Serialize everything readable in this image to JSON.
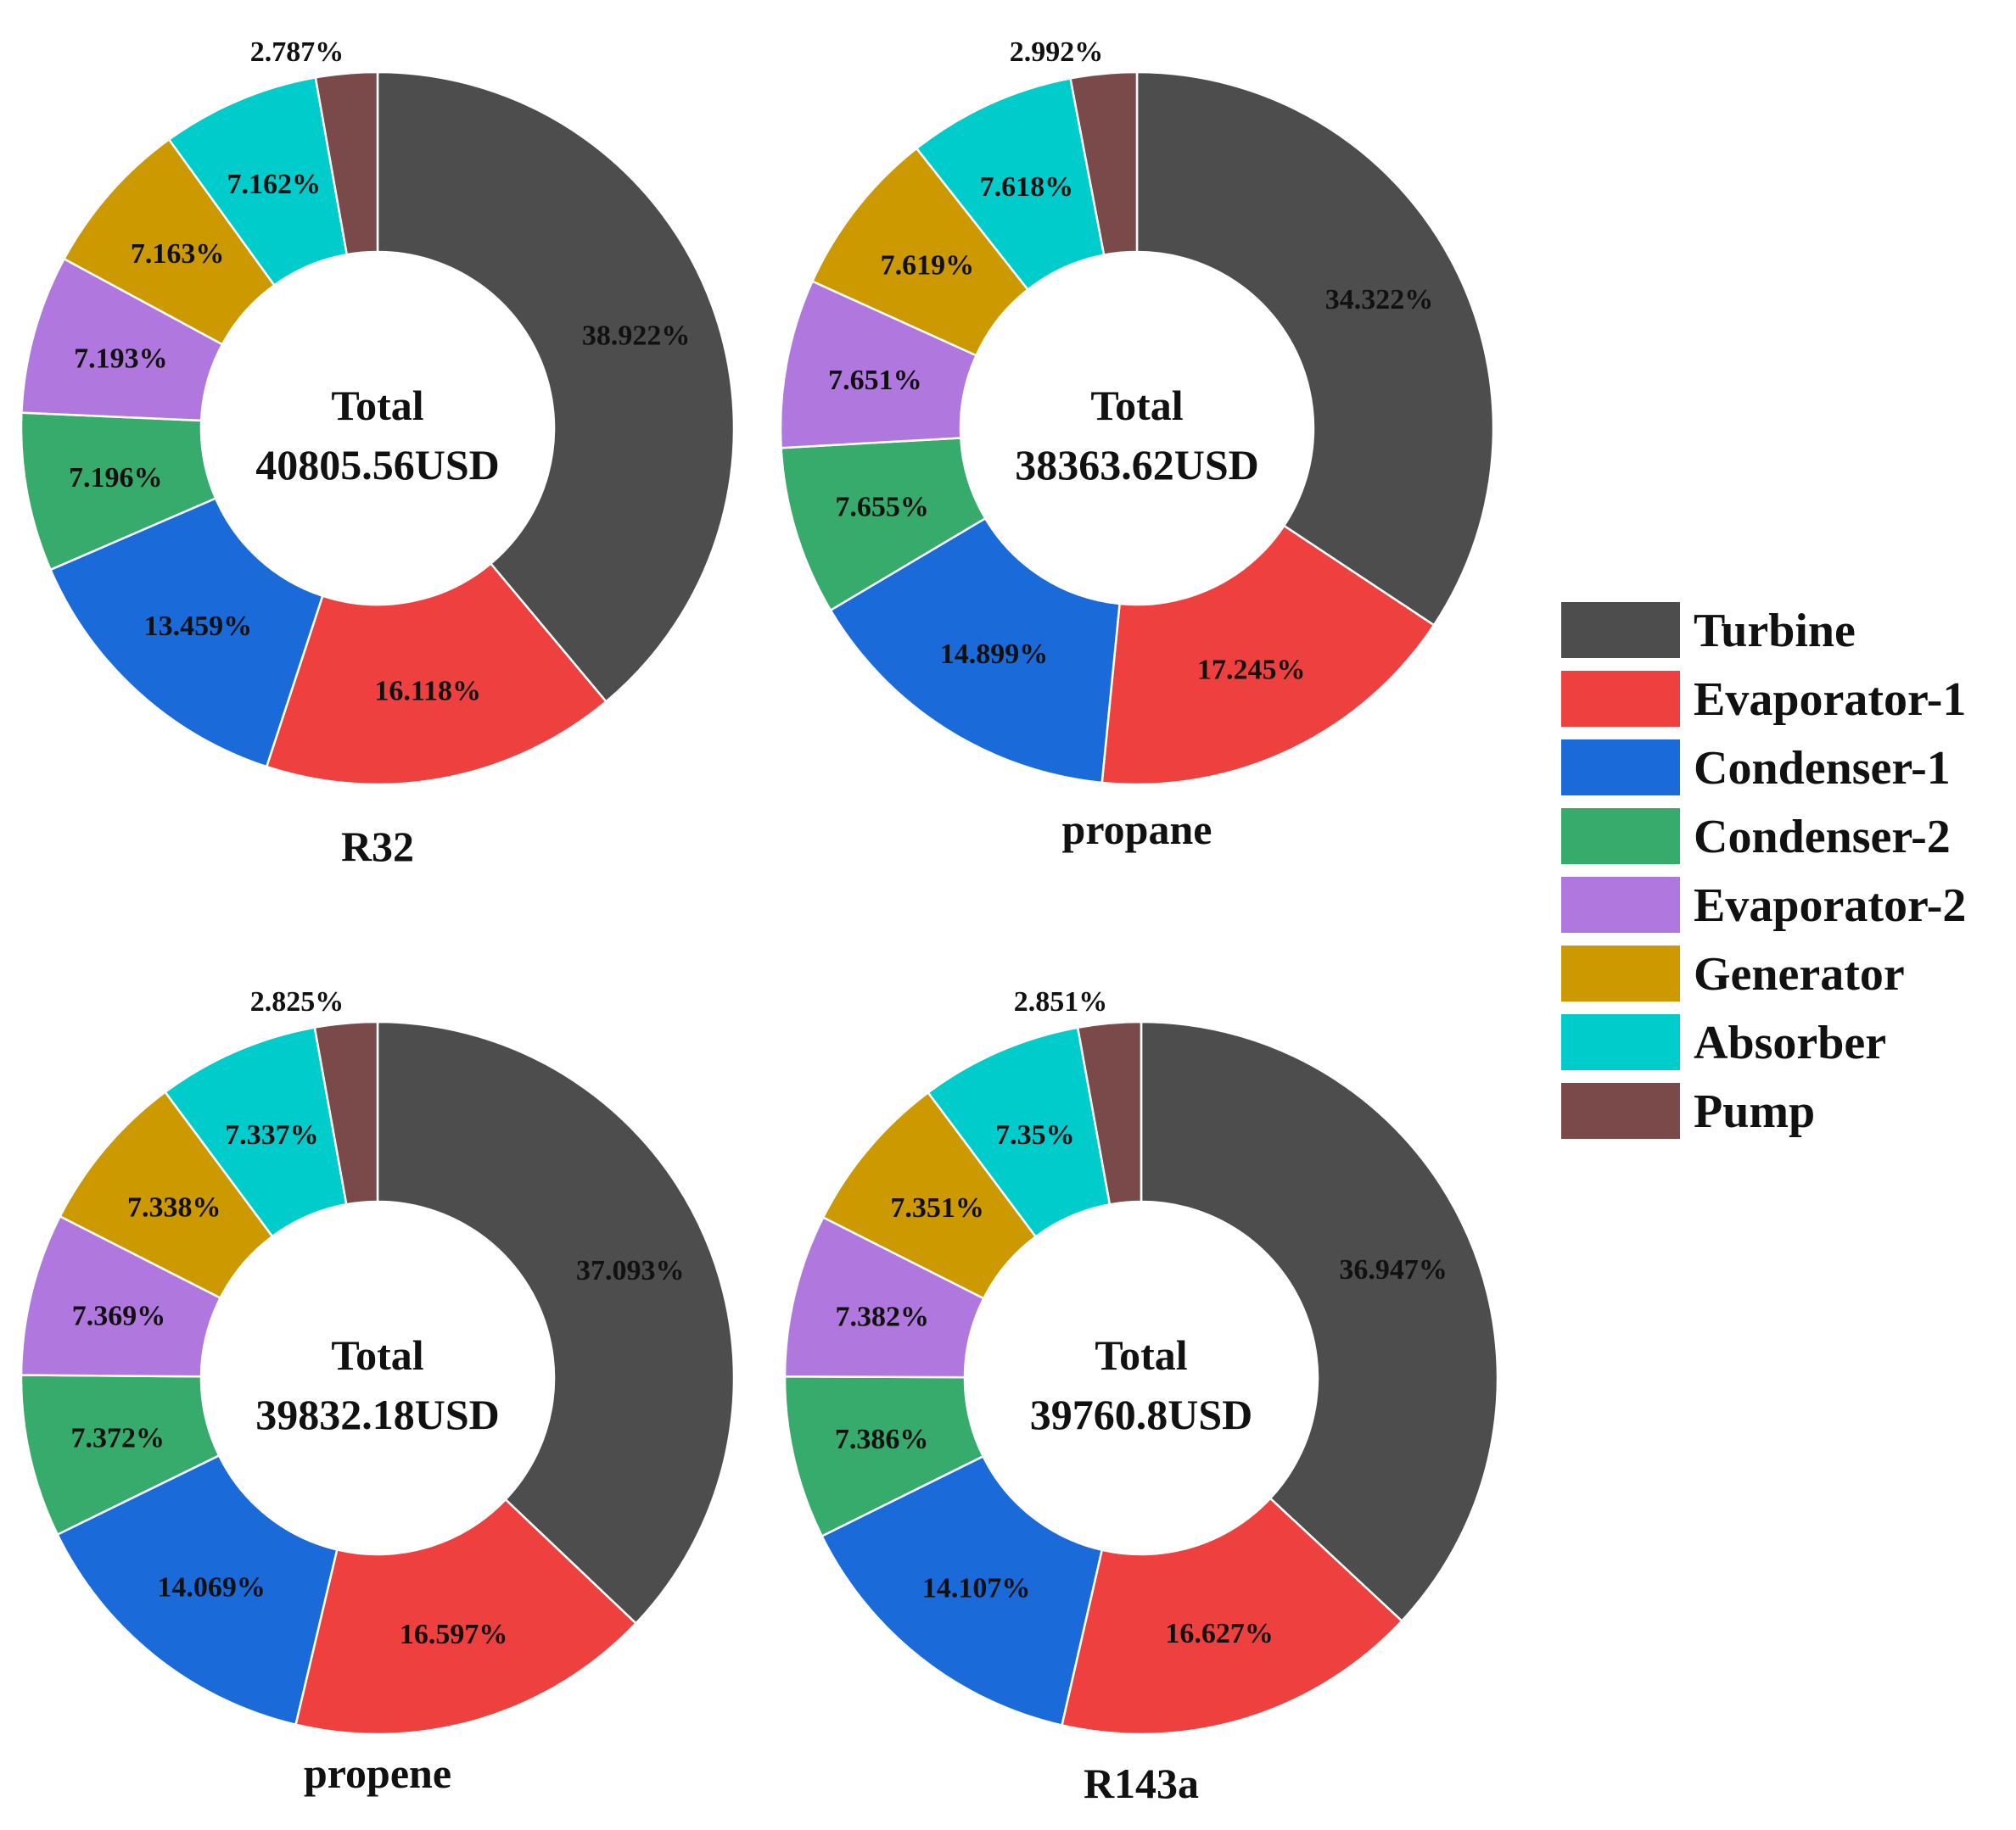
{
  "legend": {
    "items": [
      {
        "label": "Turbine",
        "color": "#4d4d4d"
      },
      {
        "label": "Evaporator-1",
        "color": "#ef4040"
      },
      {
        "label": "Condenser-1",
        "color": "#1a6ad9"
      },
      {
        "label": "Condenser-2",
        "color": "#36ab6b"
      },
      {
        "label": "Evaporator-2",
        "color": "#b078df"
      },
      {
        "label": "Generator",
        "color": "#cc9900"
      },
      {
        "label": "Absorber",
        "color": "#00cccc"
      },
      {
        "label": "Pump",
        "color": "#7a4a4a"
      }
    ]
  },
  "chart_data": [
    {
      "type": "pie",
      "name": "R32",
      "center_line1": "Total",
      "center_line2": "40805.56USD",
      "categories": [
        "Turbine",
        "Evaporator-1",
        "Condenser-1",
        "Condenser-2",
        "Evaporator-2",
        "Generator",
        "Absorber",
        "Pump"
      ],
      "values": [
        38.922,
        16.118,
        13.459,
        7.196,
        7.193,
        7.163,
        7.162,
        2.787
      ],
      "labels": [
        "38.922%",
        "16.118%",
        "13.459%",
        "7.196%",
        "7.193%",
        "7.163%",
        "7.162%",
        "2.787%"
      ]
    },
    {
      "type": "pie",
      "name": "propane",
      "center_line1": "Total",
      "center_line2": "38363.62USD",
      "categories": [
        "Turbine",
        "Evaporator-1",
        "Condenser-1",
        "Condenser-2",
        "Evaporator-2",
        "Generator",
        "Absorber",
        "Pump"
      ],
      "values": [
        34.322,
        17.245,
        14.899,
        7.655,
        7.651,
        7.619,
        7.618,
        2.992
      ],
      "labels": [
        "34.322%",
        "17.245%",
        "14.899%",
        "7.655%",
        "7.651%",
        "7.619%",
        "7.618%",
        "2.992%"
      ]
    },
    {
      "type": "pie",
      "name": "propene",
      "center_line1": "Total",
      "center_line2": "39832.18USD",
      "categories": [
        "Turbine",
        "Evaporator-1",
        "Condenser-1",
        "Condenser-2",
        "Evaporator-2",
        "Generator",
        "Absorber",
        "Pump"
      ],
      "values": [
        37.093,
        16.597,
        14.069,
        7.372,
        7.369,
        7.338,
        7.337,
        2.825
      ],
      "labels": [
        "37.093%",
        "16.597%",
        "14.069%",
        "7.372%",
        "7.369%",
        "7.338%",
        "7.337%",
        "2.825%"
      ]
    },
    {
      "type": "pie",
      "name": "R143a",
      "center_line1": "Total",
      "center_line2": "39760.8USD",
      "categories": [
        "Turbine",
        "Evaporator-1",
        "Condenser-1",
        "Condenser-2",
        "Evaporator-2",
        "Generator",
        "Absorber",
        "Pump"
      ],
      "values": [
        36.947,
        16.627,
        14.107,
        7.386,
        7.382,
        7.351,
        7.35,
        2.851
      ],
      "labels": [
        "36.947%",
        "16.627%",
        "14.107%",
        "7.386%",
        "7.382%",
        "7.351%",
        "7.35%",
        "2.851%"
      ]
    }
  ]
}
